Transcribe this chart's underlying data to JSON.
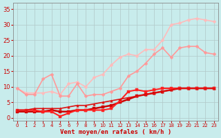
{
  "bg_color": "#c8ecec",
  "grid_color": "#b0c8c8",
  "xlabel": "Vent moyen/en rafales ( km/h )",
  "xlabel_color": "#cc0000",
  "tick_color": "#cc0000",
  "xlim": [
    -0.5,
    23.5
  ],
  "ylim": [
    -1,
    37
  ],
  "yticks": [
    0,
    5,
    10,
    15,
    20,
    25,
    30,
    35
  ],
  "xticks": [
    0,
    1,
    2,
    3,
    4,
    5,
    6,
    7,
    8,
    9,
    10,
    11,
    12,
    13,
    14,
    15,
    16,
    17,
    18,
    19,
    20,
    21,
    22,
    23
  ],
  "series": [
    {
      "comment": "lightest pink - highest line, peaks ~32",
      "x": [
        0,
        1,
        2,
        3,
        4,
        5,
        6,
        7,
        8,
        9,
        10,
        11,
        12,
        13,
        14,
        15,
        16,
        17,
        18,
        19,
        20,
        21,
        22,
        23
      ],
      "y": [
        9.5,
        8.0,
        8.0,
        8.0,
        8.5,
        7.5,
        11.0,
        11.5,
        10.0,
        13.0,
        14.0,
        17.0,
        19.5,
        20.5,
        20.0,
        22.0,
        22.0,
        25.0,
        30.0,
        30.5,
        31.5,
        32.0,
        31.5,
        31.0
      ],
      "color": "#ffbbbb",
      "lw": 1.2,
      "marker": "D",
      "ms": 2.5
    },
    {
      "comment": "medium pink - second line, peaks ~23",
      "x": [
        0,
        1,
        2,
        3,
        4,
        5,
        6,
        7,
        8,
        9,
        10,
        11,
        12,
        13,
        14,
        15,
        16,
        17,
        18,
        19,
        20,
        21,
        22,
        23
      ],
      "y": [
        9.5,
        7.5,
        7.5,
        12.5,
        14.0,
        7.0,
        7.0,
        11.0,
        7.0,
        7.5,
        7.5,
        8.5,
        9.5,
        13.5,
        15.0,
        17.5,
        20.5,
        22.5,
        19.5,
        22.5,
        23.0,
        23.0,
        21.0,
        20.5
      ],
      "color": "#ff9999",
      "lw": 1.2,
      "marker": "D",
      "ms": 2.5
    },
    {
      "comment": "dark red thick line - gradually rises to ~10",
      "x": [
        0,
        1,
        2,
        3,
        4,
        5,
        6,
        7,
        8,
        9,
        10,
        11,
        12,
        13,
        14,
        15,
        16,
        17,
        18,
        19,
        20,
        21,
        22,
        23
      ],
      "y": [
        2.0,
        2.0,
        2.0,
        2.0,
        2.5,
        2.0,
        2.0,
        2.5,
        2.5,
        3.0,
        3.5,
        4.0,
        5.0,
        6.0,
        7.0,
        7.5,
        8.0,
        8.5,
        9.0,
        9.5,
        9.5,
        9.5,
        9.5,
        9.5
      ],
      "color": "#cc0000",
      "lw": 1.8,
      "marker": "s",
      "ms": 2.5
    },
    {
      "comment": "bright red line - rises with dip",
      "x": [
        0,
        1,
        2,
        3,
        4,
        5,
        6,
        7,
        8,
        9,
        10,
        11,
        12,
        13,
        14,
        15,
        16,
        17,
        18,
        19,
        20,
        21,
        22,
        23
      ],
      "y": [
        2.5,
        2.5,
        2.5,
        2.0,
        2.0,
        0.5,
        1.5,
        2.5,
        2.5,
        2.5,
        2.5,
        3.0,
        5.5,
        8.5,
        9.0,
        8.5,
        9.0,
        9.5,
        9.5,
        9.5,
        9.5,
        9.5,
        9.5,
        9.5
      ],
      "color": "#ff2222",
      "lw": 1.5,
      "marker": "s",
      "ms": 2.5
    },
    {
      "comment": "medium red with triangle markers",
      "x": [
        0,
        1,
        2,
        3,
        4,
        5,
        6,
        7,
        8,
        9,
        10,
        11,
        12,
        13,
        14,
        15,
        16,
        17,
        18,
        19,
        20,
        21,
        22,
        23
      ],
      "y": [
        2.5,
        2.5,
        3.0,
        3.0,
        3.0,
        3.0,
        3.5,
        4.0,
        4.0,
        4.5,
        5.0,
        5.5,
        6.0,
        6.5,
        7.0,
        7.5,
        8.0,
        8.5,
        9.0,
        9.5,
        9.5,
        9.5,
        9.5,
        9.5
      ],
      "color": "#dd1111",
      "lw": 1.2,
      "marker": "^",
      "ms": 2.5
    }
  ]
}
